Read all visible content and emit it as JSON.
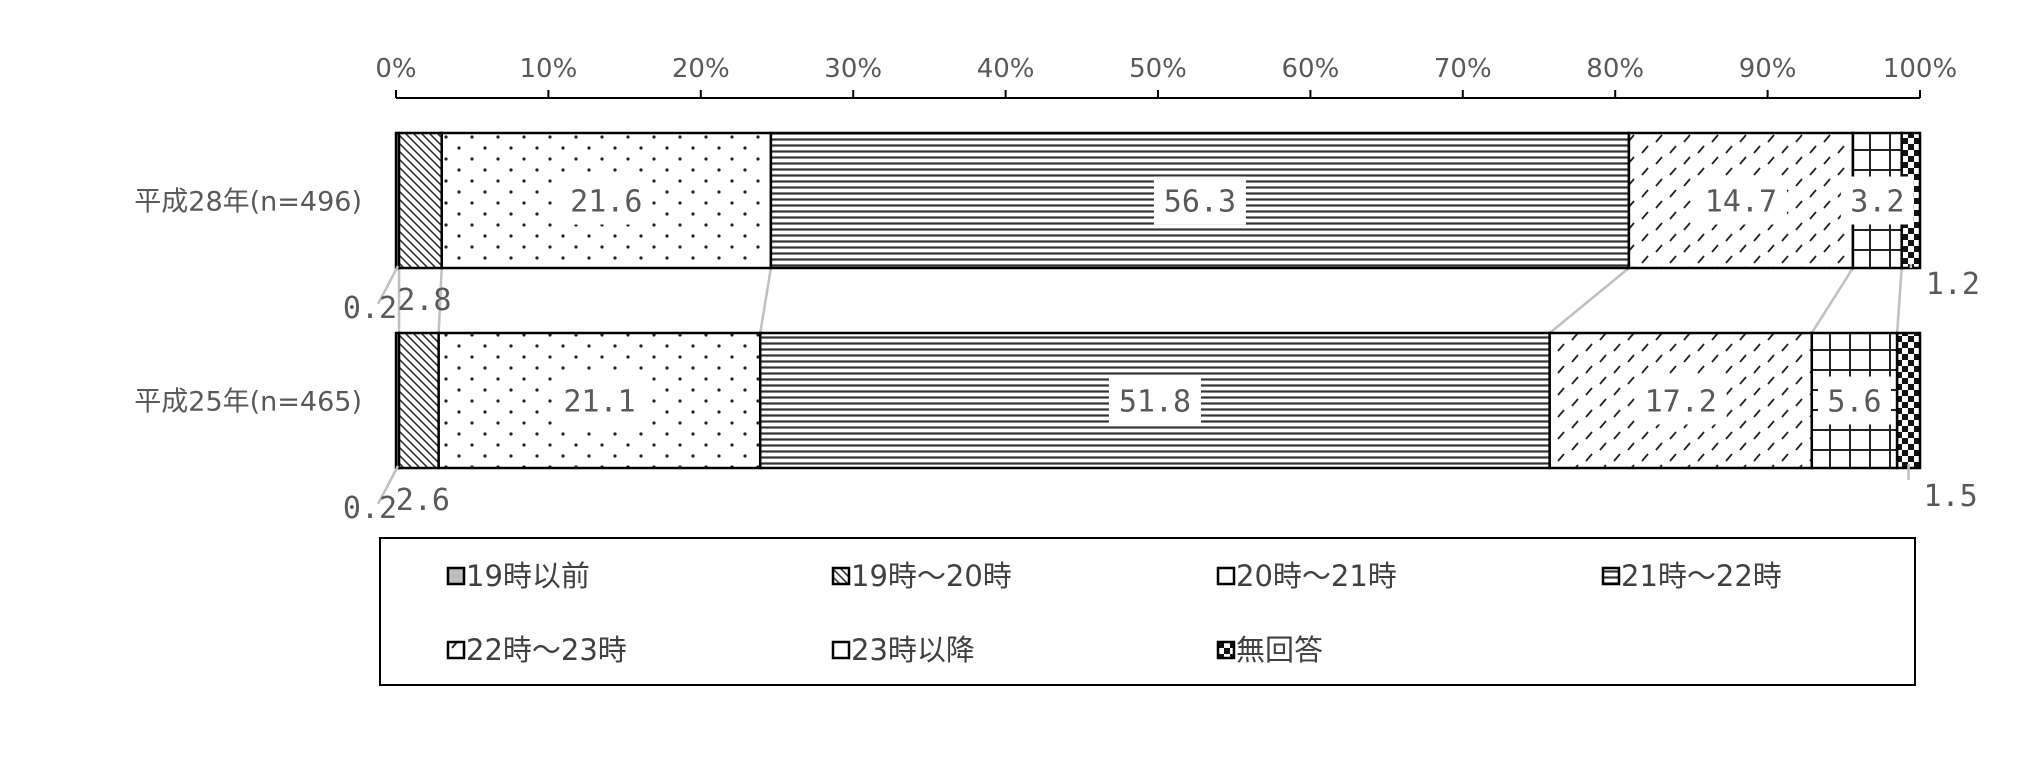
{
  "chart_data": {
    "type": "bar",
    "orientation": "horizontal",
    "stacked": "percent",
    "title": "",
    "xlabel": "",
    "ylabel": "",
    "xlim": [
      0,
      100
    ],
    "x_ticks": [
      "0%",
      "10%",
      "20%",
      "30%",
      "40%",
      "50%",
      "60%",
      "70%",
      "80%",
      "90%",
      "100%"
    ],
    "categories": [
      "平成28年(n=496)",
      "平成25年(n=465)"
    ],
    "series": [
      {
        "name": "19時以前",
        "values": [
          0.2,
          0.2
        ],
        "labels": [
          "0.2",
          "0.2"
        ]
      },
      {
        "name": "19時～20時",
        "values": [
          2.8,
          2.6
        ],
        "labels": [
          "2.8",
          "2.6"
        ]
      },
      {
        "name": "20時～21時",
        "values": [
          21.6,
          21.1
        ],
        "labels": [
          "21.6",
          "21.1"
        ]
      },
      {
        "name": "21時～22時",
        "values": [
          56.3,
          51.8
        ],
        "labels": [
          "56.3",
          "51.8"
        ]
      },
      {
        "name": "22時～23時",
        "values": [
          14.7,
          17.2
        ],
        "labels": [
          "14.7",
          "17.2"
        ]
      },
      {
        "name": "23時以降",
        "values": [
          3.2,
          5.6
        ],
        "labels": [
          "3.2",
          "5.6"
        ]
      },
      {
        "name": "無回答",
        "values": [
          1.2,
          1.5
        ],
        "labels": [
          "1.2",
          "1.5"
        ]
      }
    ],
    "legend_position": "bottom",
    "grid": false,
    "series_lines": true
  }
}
